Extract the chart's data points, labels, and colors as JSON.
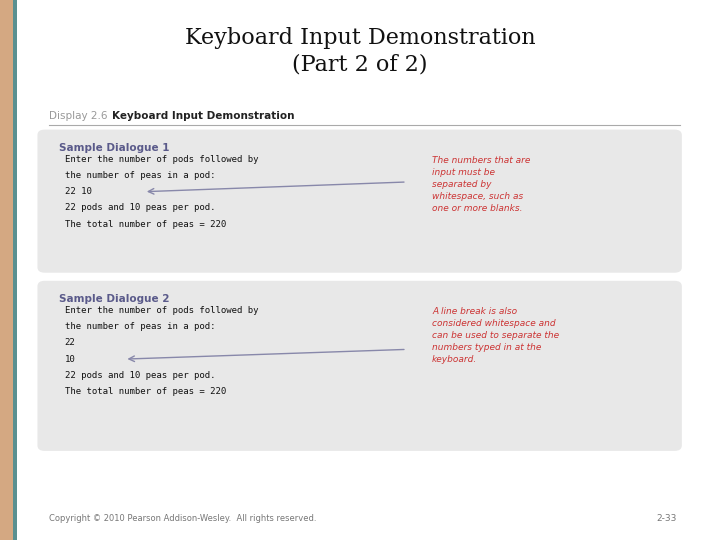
{
  "title": "Keyboard Input Demonstration\n(Part 2 of 2)",
  "title_fontsize": 16,
  "bg_color": "#ffffff",
  "display_label": "Display 2.6",
  "display_title": "Keyboard Input Demonstration",
  "box_bg": "#e8e8e8",
  "header1": "Sample Dialogue 1",
  "header2": "Sample Dialogue 2",
  "header_color": "#5a5a8a",
  "dialogue1_lines": [
    "Enter the number of pods followed by",
    "the number of peas in a pod:",
    "22 10",
    "22 pods and 10 peas per pod.",
    "The total number of peas = 220"
  ],
  "dialogue2_lines": [
    "Enter the number of pods followed by",
    "the number of peas in a pod:",
    "22",
    "10",
    "22 pods and 10 peas per pod.",
    "The total number of peas = 220"
  ],
  "annotation1": "The numbers that are\ninput must be\nseparated by\nwhitespace, such as\none or more blanks.",
  "annotation2": "A line break is also\nconsidered whitespace and\ncan be used to separate the\nnumbers typed in at the\nkeyboard.",
  "annotation_color": "#cc3333",
  "mono_font": "monospace",
  "copyright": "Copyright © 2010 Pearson Addison-Wesley.  All rights reserved.",
  "page_num": "2-33",
  "left_bar_color": "#d4a882",
  "left_bar_teal": "#5a9090"
}
